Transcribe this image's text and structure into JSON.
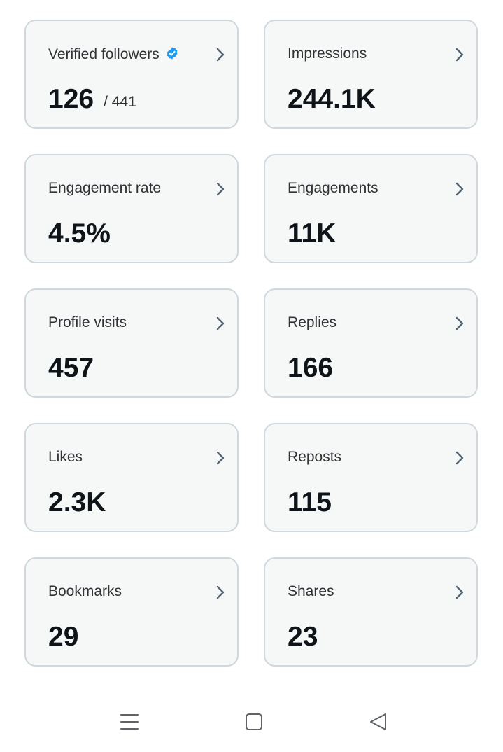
{
  "cards": [
    {
      "label": "Verified followers",
      "value": "126",
      "subvalue": "/ 441",
      "verified": true
    },
    {
      "label": "Impressions",
      "value": "244.1K"
    },
    {
      "label": "Engagement rate",
      "value": "4.5%"
    },
    {
      "label": "Engagements",
      "value": "11K"
    },
    {
      "label": "Profile visits",
      "value": "457"
    },
    {
      "label": "Replies",
      "value": "166"
    },
    {
      "label": "Likes",
      "value": "2.3K"
    },
    {
      "label": "Reposts",
      "value": "115"
    },
    {
      "label": "Bookmarks",
      "value": "29"
    },
    {
      "label": "Shares",
      "value": "23"
    }
  ],
  "icons": {
    "card_chevron": "chevron-right-icon",
    "verified_badge": "verified-badge-icon",
    "nav_menu": "menu-icon",
    "nav_home": "home-square-icon",
    "nav_back": "back-triangle-icon"
  },
  "colors": {
    "card_background": "#f6f7f7",
    "card_border": "#cfd8dc",
    "label_text": "#2f3336",
    "value_text": "#0f1419",
    "verified_blue": "#1d9bf0",
    "chevron": "#536471",
    "navbar_icon": "#5f6368"
  }
}
